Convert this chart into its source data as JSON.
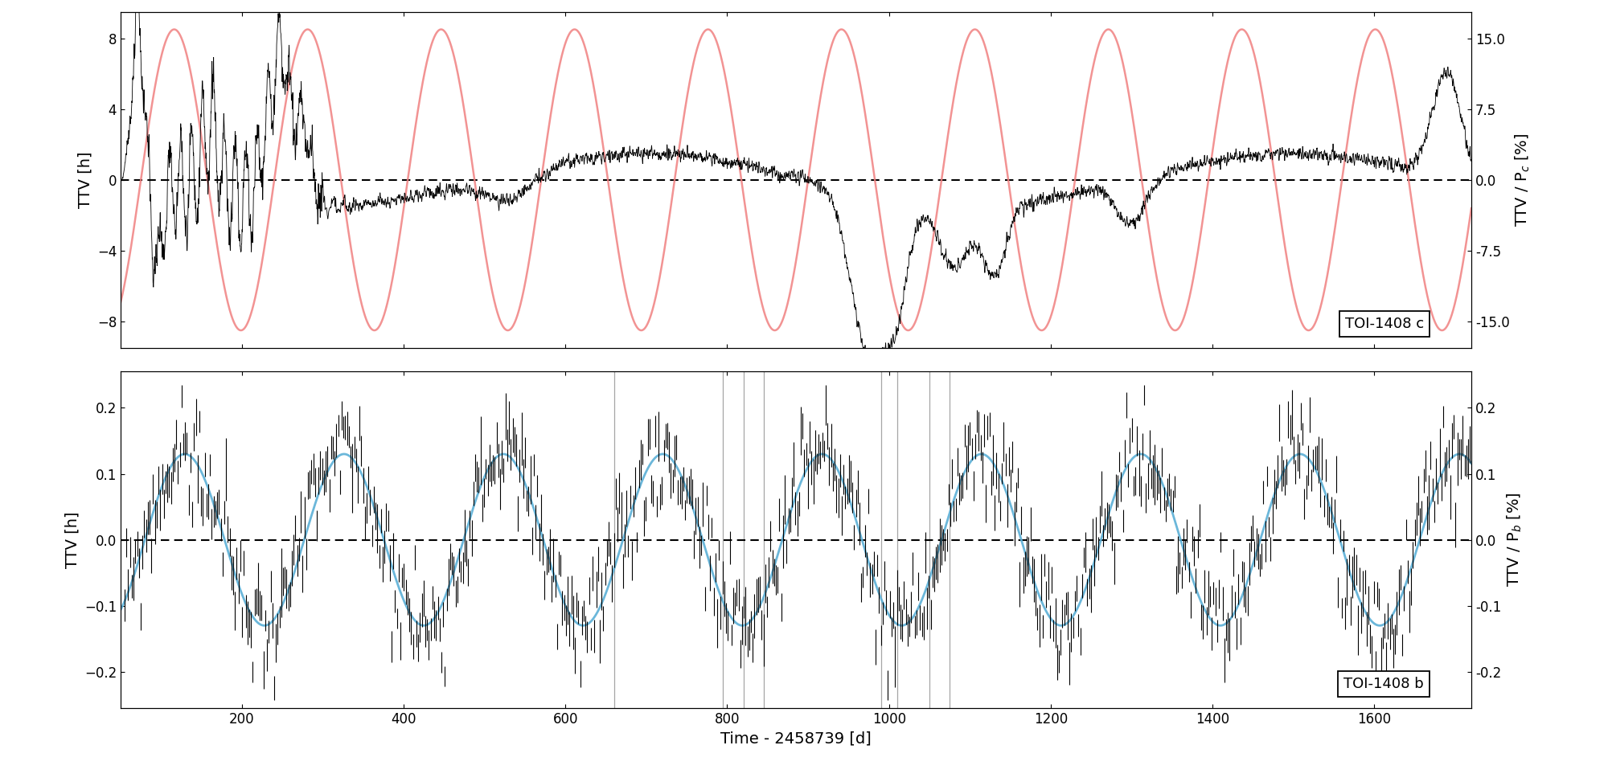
{
  "xlim": [
    50,
    1720
  ],
  "xlabel": "Time - 2458739 [d]",
  "xticks": [
    200,
    400,
    600,
    800,
    1000,
    1200,
    1400,
    1600
  ],
  "upper_ylim": [
    -9.5,
    9.5
  ],
  "upper_yticks": [
    -8.0,
    -4.0,
    0.0,
    4.0,
    8.0
  ],
  "upper_ylabel_left": "TTV [h]",
  "upper_yticks_right": [
    -15.0,
    -7.5,
    0.0,
    7.5,
    15.0
  ],
  "lower_ylim": [
    -0.255,
    0.255
  ],
  "lower_yticks": [
    -0.2,
    -0.1,
    0.0,
    0.1,
    0.2
  ],
  "lower_ylabel_left": "TTV [h]",
  "lower_yticks_right": [
    -0.2,
    -0.1,
    0.0,
    0.1,
    0.2
  ],
  "upper_label": "TOI-1408 c",
  "lower_label": "TOI-1408 b",
  "salmon_color": "#F08080",
  "blue_color": "#5BAFD6",
  "black_color": "#000000",
  "gray_color": "#888888",
  "background_color": "#ffffff",
  "upper_sine_amp": 8.5,
  "upper_sine_period": 165,
  "upper_sine_phase_t0": 75,
  "lower_sine_amp": 0.13,
  "lower_sine_period": 197,
  "lower_sine_phase_t0": 80,
  "gray_vline_groups": [
    [
      660
    ],
    [
      795,
      820,
      845
    ],
    [
      990,
      1010,
      1050,
      1075
    ]
  ]
}
